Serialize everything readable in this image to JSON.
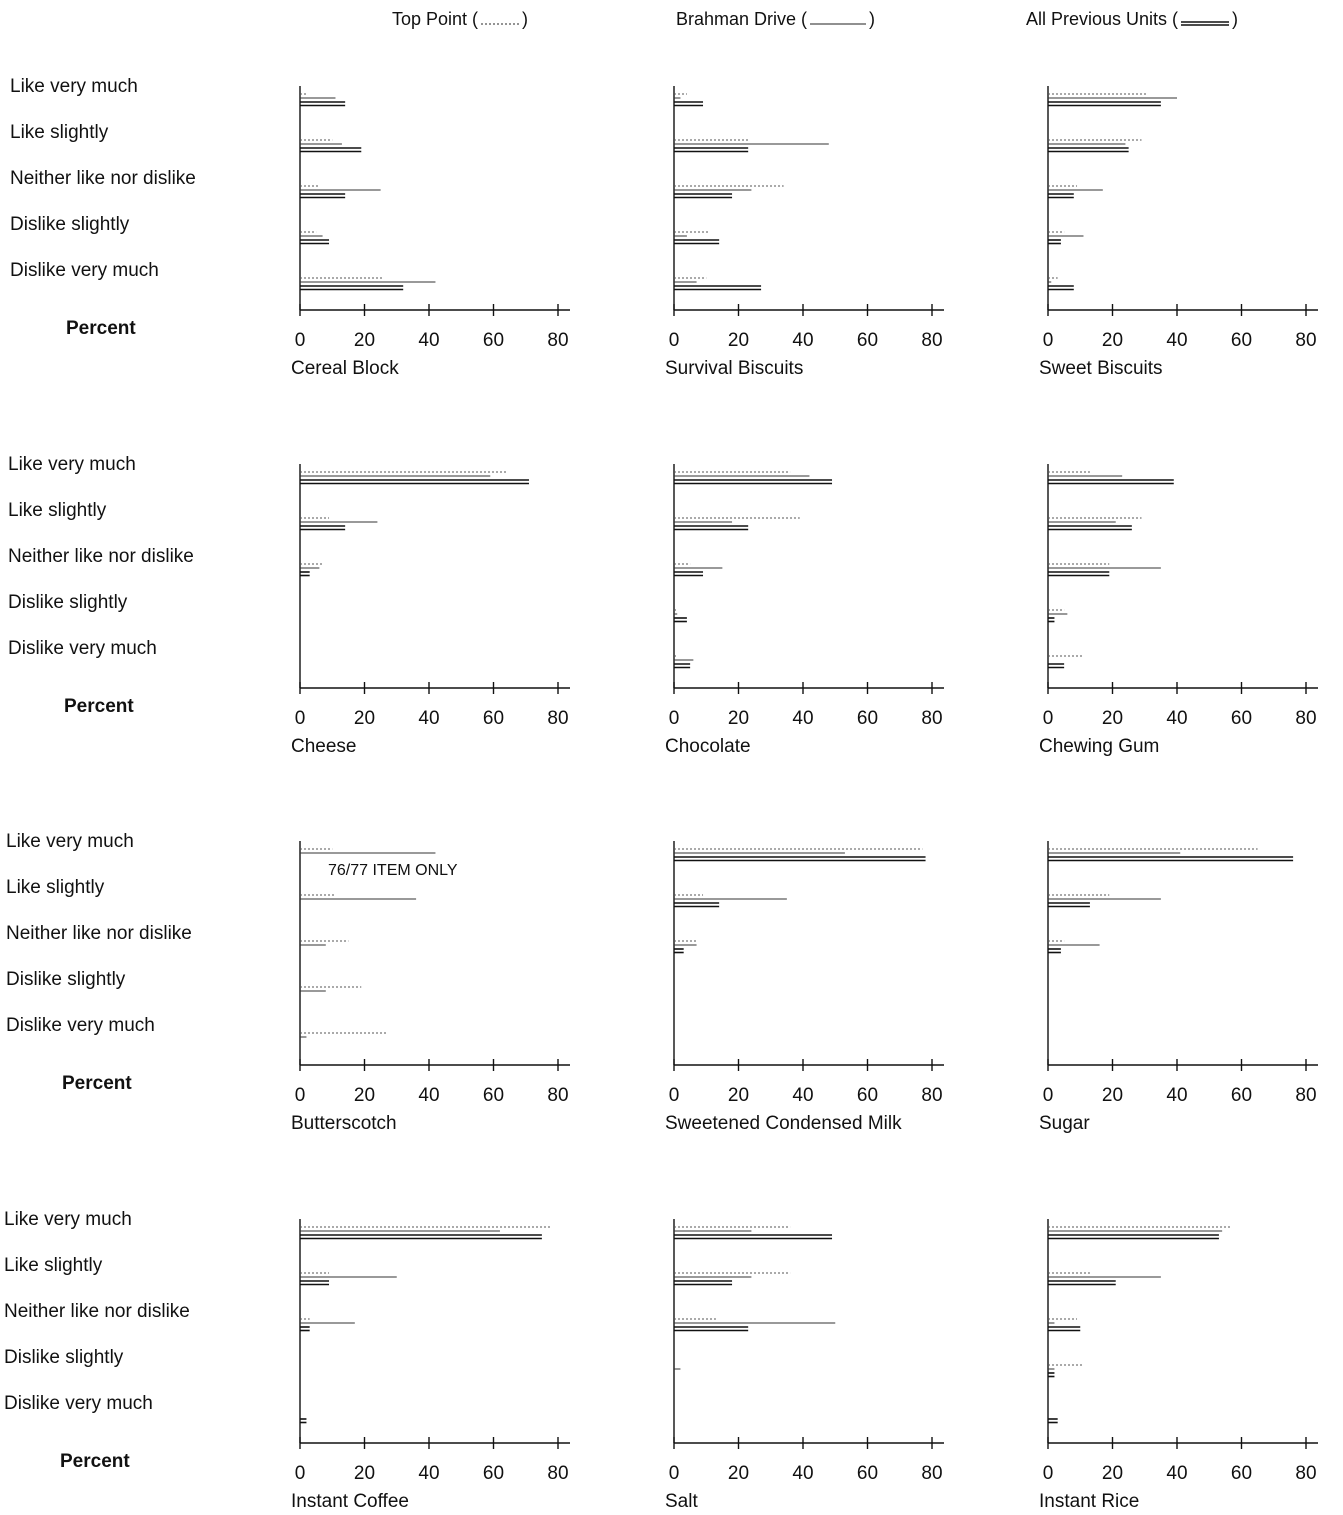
{
  "legend": {
    "items": [
      {
        "label_left": "Top Point (",
        "label_right": ")",
        "style": "dotted"
      },
      {
        "label_left": "Brahman Drive (",
        "label_right": ")",
        "style": "single"
      },
      {
        "label_left": "All Previous Units (",
        "label_right": ")",
        "style": "double"
      }
    ]
  },
  "row_labels": {
    "categories": [
      "Like very much",
      "Like slightly",
      "Neither like nor dislike",
      "Dislike slightly",
      "Dislike very much"
    ],
    "percent": "Percent"
  },
  "colors": {
    "ink": "#111111",
    "light_ink": "#555555"
  },
  "chart_data": [
    {
      "type": "bar",
      "title": "Cereal Block",
      "xlabel": "Percent",
      "xlim": [
        0,
        80
      ],
      "ticks": [
        "0",
        "20",
        "40",
        "60",
        "80"
      ],
      "categories": [
        "Like very much",
        "Like slightly",
        "Neither like nor dislike",
        "Dislike slightly",
        "Dislike very much"
      ],
      "series": [
        {
          "name": "Top Point",
          "values": [
            2,
            10,
            6,
            5,
            26
          ]
        },
        {
          "name": "Brahman Drive",
          "values": [
            11,
            13,
            25,
            7,
            42
          ]
        },
        {
          "name": "All Previous Units",
          "values": [
            14,
            19,
            14,
            9,
            32
          ]
        }
      ],
      "note": ""
    },
    {
      "type": "bar",
      "title": "Survival Biscuits",
      "xlabel": "Percent",
      "xlim": [
        0,
        80
      ],
      "ticks": [
        "0",
        "20",
        "40",
        "60",
        "80"
      ],
      "categories": [
        "Like very much",
        "Like slightly",
        "Neither like nor dislike",
        "Dislike slightly",
        "Dislike very much"
      ],
      "series": [
        {
          "name": "Top Point",
          "values": [
            4,
            23,
            34,
            11,
            10
          ]
        },
        {
          "name": "Brahman Drive",
          "values": [
            2,
            48,
            24,
            4,
            7
          ]
        },
        {
          "name": "All Previous Units",
          "values": [
            9,
            23,
            18,
            14,
            27
          ]
        }
      ],
      "note": ""
    },
    {
      "type": "bar",
      "title": "Sweet Biscuits",
      "xlabel": "Percent",
      "xlim": [
        0,
        80
      ],
      "ticks": [
        "0",
        "20",
        "40",
        "60",
        "80"
      ],
      "categories": [
        "Like very much",
        "Like slightly",
        "Neither like nor dislike",
        "Dislike slightly",
        "Dislike very much"
      ],
      "series": [
        {
          "name": "Top Point",
          "values": [
            31,
            29,
            9,
            5,
            3
          ]
        },
        {
          "name": "Brahman Drive",
          "values": [
            40,
            24,
            17,
            11,
            1
          ]
        },
        {
          "name": "All Previous Units",
          "values": [
            35,
            25,
            8,
            4,
            8
          ]
        }
      ],
      "note": ""
    },
    {
      "type": "bar",
      "title": "Cheese",
      "xlabel": "Percent",
      "xlim": [
        0,
        80
      ],
      "ticks": [
        "0",
        "20",
        "40",
        "60",
        "80"
      ],
      "categories": [
        "Like very much",
        "Like slightly",
        "Neither like nor dislike",
        "Dislike slightly",
        "Dislike very much"
      ],
      "series": [
        {
          "name": "Top Point",
          "values": [
            64,
            9,
            7,
            0,
            0
          ]
        },
        {
          "name": "Brahman Drive",
          "values": [
            59,
            24,
            6,
            0,
            0
          ]
        },
        {
          "name": "All Previous Units",
          "values": [
            71,
            14,
            3,
            0,
            0
          ]
        }
      ],
      "note": ""
    },
    {
      "type": "bar",
      "title": "Chocolate",
      "xlabel": "Percent",
      "xlim": [
        0,
        80
      ],
      "ticks": [
        "0",
        "20",
        "40",
        "60",
        "80"
      ],
      "categories": [
        "Like very much",
        "Like slightly",
        "Neither like nor dislike",
        "Dislike slightly",
        "Dislike very much"
      ],
      "series": [
        {
          "name": "Top Point",
          "values": [
            36,
            39,
            5,
            1,
            1
          ]
        },
        {
          "name": "Brahman Drive",
          "values": [
            42,
            18,
            15,
            1,
            6
          ]
        },
        {
          "name": "All Previous Units",
          "values": [
            49,
            23,
            9,
            4,
            5
          ]
        }
      ],
      "note": ""
    },
    {
      "type": "bar",
      "title": "Chewing Gum",
      "xlabel": "Percent",
      "xlim": [
        0,
        80
      ],
      "ticks": [
        "0",
        "20",
        "40",
        "60",
        "80"
      ],
      "categories": [
        "Like very much",
        "Like slightly",
        "Neither like nor dislike",
        "Dislike slightly",
        "Dislike very much"
      ],
      "series": [
        {
          "name": "Top Point",
          "values": [
            13,
            29,
            19,
            5,
            11
          ]
        },
        {
          "name": "Brahman Drive",
          "values": [
            23,
            21,
            35,
            6,
            0
          ]
        },
        {
          "name": "All Previous Units",
          "values": [
            39,
            26,
            19,
            2,
            5
          ]
        }
      ],
      "note": ""
    },
    {
      "type": "bar",
      "title": "Butterscotch",
      "xlabel": "Percent",
      "xlim": [
        0,
        80
      ],
      "ticks": [
        "0",
        "20",
        "40",
        "60",
        "80"
      ],
      "categories": [
        "Like very much",
        "Like slightly",
        "Neither like nor dislike",
        "Dislike slightly",
        "Dislike very much"
      ],
      "series": [
        {
          "name": "Top Point",
          "values": [
            10,
            11,
            15,
            19,
            27
          ]
        },
        {
          "name": "Brahman Drive",
          "values": [
            42,
            36,
            8,
            8,
            2
          ]
        },
        {
          "name": "All Previous Units",
          "values": [
            0,
            0,
            0,
            0,
            0
          ]
        }
      ],
      "note": "76/77 ITEM ONLY"
    },
    {
      "type": "bar",
      "title": "Sweetened Condensed Milk",
      "xlabel": "Percent",
      "xlim": [
        0,
        80
      ],
      "ticks": [
        "0",
        "20",
        "40",
        "60",
        "80"
      ],
      "categories": [
        "Like very much",
        "Like slightly",
        "Neither like nor dislike",
        "Dislike slightly",
        "Dislike very much"
      ],
      "series": [
        {
          "name": "Top Point",
          "values": [
            77,
            9,
            7,
            0,
            0
          ]
        },
        {
          "name": "Brahman Drive",
          "values": [
            53,
            35,
            7,
            0,
            0
          ]
        },
        {
          "name": "All Previous Units",
          "values": [
            78,
            14,
            3,
            0,
            0
          ]
        }
      ],
      "note": ""
    },
    {
      "type": "bar",
      "title": "Sugar",
      "xlabel": "Percent",
      "xlim": [
        0,
        80
      ],
      "ticks": [
        "0",
        "20",
        "40",
        "60",
        "80"
      ],
      "categories": [
        "Like very much",
        "Like slightly",
        "Neither like nor dislike",
        "Dislike slightly",
        "Dislike very much"
      ],
      "series": [
        {
          "name": "Top Point",
          "values": [
            65,
            19,
            5,
            0,
            0
          ]
        },
        {
          "name": "Brahman Drive",
          "values": [
            41,
            35,
            16,
            0,
            0
          ]
        },
        {
          "name": "All Previous Units",
          "values": [
            76,
            13,
            4,
            0,
            0
          ]
        }
      ],
      "note": ""
    },
    {
      "type": "bar",
      "title": "Instant Coffee",
      "xlabel": "Percent",
      "xlim": [
        0,
        80
      ],
      "ticks": [
        "0",
        "20",
        "40",
        "60",
        "80"
      ],
      "categories": [
        "Like very much",
        "Like slightly",
        "Neither like nor dislike",
        "Dislike slightly",
        "Dislike very much"
      ],
      "series": [
        {
          "name": "Top Point",
          "values": [
            78,
            9,
            3,
            0,
            0
          ]
        },
        {
          "name": "Brahman Drive",
          "values": [
            62,
            30,
            17,
            0,
            0
          ]
        },
        {
          "name": "All Previous Units",
          "values": [
            75,
            9,
            3,
            0,
            2
          ]
        }
      ],
      "note": ""
    },
    {
      "type": "bar",
      "title": "Salt",
      "xlabel": "Percent",
      "xlim": [
        0,
        80
      ],
      "ticks": [
        "0",
        "20",
        "40",
        "60",
        "80"
      ],
      "categories": [
        "Like very much",
        "Like slightly",
        "Neither like nor dislike",
        "Dislike slightly",
        "Dislike very much"
      ],
      "series": [
        {
          "name": "Top Point",
          "values": [
            36,
            36,
            13,
            0,
            0
          ]
        },
        {
          "name": "Brahman Drive",
          "values": [
            24,
            24,
            50,
            2,
            0
          ]
        },
        {
          "name": "All Previous Units",
          "values": [
            49,
            18,
            23,
            0,
            0
          ]
        }
      ],
      "note": ""
    },
    {
      "type": "bar",
      "title": "Instant Rice",
      "xlabel": "Percent",
      "xlim": [
        0,
        80
      ],
      "ticks": [
        "0",
        "20",
        "40",
        "60",
        "80"
      ],
      "categories": [
        "Like very much",
        "Like slightly",
        "Neither like nor dislike",
        "Dislike slightly",
        "Dislike very much"
      ],
      "series": [
        {
          "name": "Top Point",
          "values": [
            57,
            13,
            9,
            11,
            0
          ]
        },
        {
          "name": "Brahman Drive",
          "values": [
            54,
            35,
            2,
            2,
            0
          ]
        },
        {
          "name": "All Previous Units",
          "values": [
            53,
            21,
            10,
            2,
            3
          ]
        }
      ],
      "note": ""
    }
  ]
}
